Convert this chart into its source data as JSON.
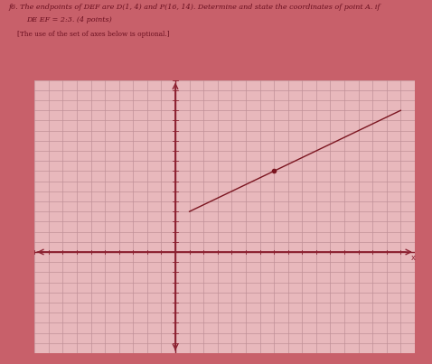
{
  "background_color": "#c8606a",
  "grid_bg_color": "#e8b8bc",
  "grid_color": "#c09098",
  "axis_color": "#8b2030",
  "line_color": "#7b1520",
  "text_color": "#6b1020",
  "title_text": "f6. The endpoints of DEF are D(1, 4) and P(16, 14). Determine and state the coordinates of point A. if",
  "subtitle_text": "DE EF = 2:3. (4 points)",
  "optional_text": "[The use of the set of axes below is optional.]",
  "x_min": -10,
  "x_max": 17,
  "y_min": -10,
  "y_max": 17,
  "grid_step": 1,
  "D_point": [
    1,
    4
  ],
  "P_point": [
    16,
    14
  ],
  "mid_point": [
    7,
    8
  ],
  "figsize": [
    4.78,
    4.03
  ],
  "dpi": 100
}
